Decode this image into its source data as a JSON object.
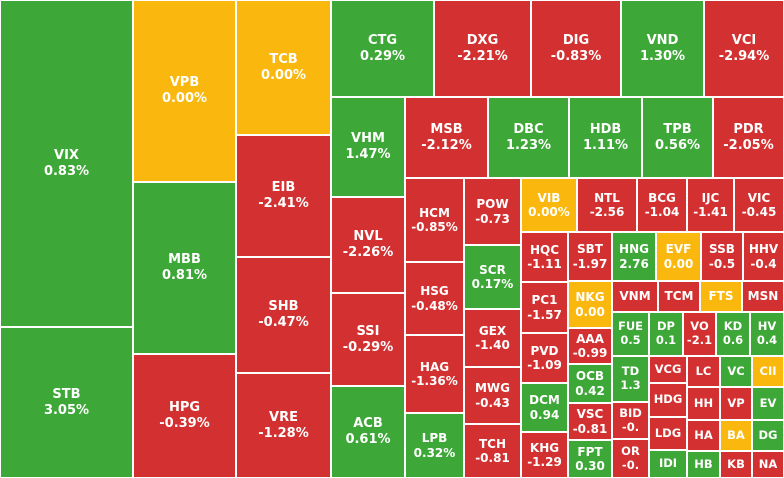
{
  "colors": {
    "up": "#3da837",
    "down": "#d33131",
    "flat": "#fab80e"
  },
  "tiles": [
    {
      "symbol": "VIX",
      "change": "0.83%",
      "state": "up"
    },
    {
      "symbol": "STB",
      "change": "3.05%",
      "state": "up"
    },
    {
      "symbol": "VPB",
      "change": "0.00%",
      "state": "flat"
    },
    {
      "symbol": "MBB",
      "change": "0.81%",
      "state": "up"
    },
    {
      "symbol": "HPG",
      "change": "-0.39%",
      "state": "down"
    },
    {
      "symbol": "TCB",
      "change": "0.00%",
      "state": "flat"
    },
    {
      "symbol": "EIB",
      "change": "-2.41%",
      "state": "down"
    },
    {
      "symbol": "SHB",
      "change": "-0.47%",
      "state": "down"
    },
    {
      "symbol": "VRE",
      "change": "-1.28%",
      "state": "down"
    },
    {
      "symbol": "CTG",
      "change": "0.29%",
      "state": "up"
    },
    {
      "symbol": "VHM",
      "change": "1.47%",
      "state": "up"
    },
    {
      "symbol": "NVL",
      "change": "-2.26%",
      "state": "down"
    },
    {
      "symbol": "SSI",
      "change": "-0.29%",
      "state": "down"
    },
    {
      "symbol": "ACB",
      "change": "0.61%",
      "state": "up"
    },
    {
      "symbol": "DXG",
      "change": "-2.21%",
      "state": "down"
    },
    {
      "symbol": "DIG",
      "change": "-0.83%",
      "state": "down"
    },
    {
      "symbol": "VND",
      "change": "1.30%",
      "state": "up"
    },
    {
      "symbol": "VCI",
      "change": "-2.94%",
      "state": "down"
    },
    {
      "symbol": "MSB",
      "change": "-2.12%",
      "state": "down"
    },
    {
      "symbol": "DBC",
      "change": "1.23%",
      "state": "up"
    },
    {
      "symbol": "HDB",
      "change": "1.11%",
      "state": "up"
    },
    {
      "symbol": "TPB",
      "change": "0.56%",
      "state": "up"
    },
    {
      "symbol": "PDR",
      "change": "-2.05%",
      "state": "down"
    },
    {
      "symbol": "HCM",
      "change": "-0.85%",
      "state": "down"
    },
    {
      "symbol": "HSG",
      "change": "-0.48%",
      "state": "down"
    },
    {
      "symbol": "HAG",
      "change": "-1.36%",
      "state": "down"
    },
    {
      "symbol": "LPB",
      "change": "0.32%",
      "state": "up"
    },
    {
      "symbol": "POW",
      "change": "-0.73",
      "state": "down"
    },
    {
      "symbol": "SCR",
      "change": "0.17%",
      "state": "up"
    },
    {
      "symbol": "GEX",
      "change": "-1.40",
      "state": "down"
    },
    {
      "symbol": "MWG",
      "change": "-0.43",
      "state": "down"
    },
    {
      "symbol": "TCH",
      "change": "-0.81",
      "state": "down"
    },
    {
      "symbol": "VIB",
      "change": "0.00%",
      "state": "flat"
    },
    {
      "symbol": "NTL",
      "change": "-2.56",
      "state": "down"
    },
    {
      "symbol": "BCG",
      "change": "-1.04",
      "state": "down"
    },
    {
      "symbol": "IJC",
      "change": "-1.41",
      "state": "down"
    },
    {
      "symbol": "VIC",
      "change": "-0.45",
      "state": "down"
    },
    {
      "symbol": "HQC",
      "change": "-1.11",
      "state": "down"
    },
    {
      "symbol": "PC1",
      "change": "-1.57",
      "state": "down"
    },
    {
      "symbol": "PVD",
      "change": "-1.09",
      "state": "down"
    },
    {
      "symbol": "DCM",
      "change": "0.94",
      "state": "up"
    },
    {
      "symbol": "KHG",
      "change": "-1.29",
      "state": "down"
    },
    {
      "symbol": "SBT",
      "change": "-1.97",
      "state": "down"
    },
    {
      "symbol": "HNG",
      "change": "2.76",
      "state": "up"
    },
    {
      "symbol": "EVF",
      "change": "0.00",
      "state": "flat"
    },
    {
      "symbol": "SSB",
      "change": "-0.5",
      "state": "down"
    },
    {
      "symbol": "HHV",
      "change": "-0.4",
      "state": "down"
    },
    {
      "symbol": "NKG",
      "change": "0.00",
      "state": "flat"
    },
    {
      "symbol": "VNM",
      "change": "",
      "state": "down"
    },
    {
      "symbol": "TCM",
      "change": "",
      "state": "down"
    },
    {
      "symbol": "FTS",
      "change": "",
      "state": "flat"
    },
    {
      "symbol": "MSN",
      "change": "",
      "state": "down"
    },
    {
      "symbol": "AAA",
      "change": "-0.99",
      "state": "down"
    },
    {
      "symbol": "OCB",
      "change": "0.42",
      "state": "up"
    },
    {
      "symbol": "VSC",
      "change": "-0.81",
      "state": "down"
    },
    {
      "symbol": "FPT",
      "change": "0.30",
      "state": "up"
    },
    {
      "symbol": "FUE",
      "change": "0.5",
      "state": "up"
    },
    {
      "symbol": "DP",
      "change": "0.1",
      "state": "up"
    },
    {
      "symbol": "VO",
      "change": "-2.1",
      "state": "down"
    },
    {
      "symbol": "KD",
      "change": "0.6",
      "state": "up"
    },
    {
      "symbol": "HV",
      "change": "0.4",
      "state": "up"
    },
    {
      "symbol": "TD",
      "change": "1.3",
      "state": "up"
    },
    {
      "symbol": "BID",
      "change": "-0.",
      "state": "down"
    },
    {
      "symbol": "OR",
      "change": "-0.",
      "state": "down"
    },
    {
      "symbol": "VCG",
      "change": "",
      "state": "down"
    },
    {
      "symbol": "HDG",
      "change": "",
      "state": "down"
    },
    {
      "symbol": "LDG",
      "change": "",
      "state": "down"
    },
    {
      "symbol": "IDI",
      "change": "",
      "state": "up"
    },
    {
      "symbol": "LC",
      "change": "",
      "state": "down"
    },
    {
      "symbol": "VC",
      "change": "",
      "state": "up"
    },
    {
      "symbol": "CII",
      "change": "",
      "state": "flat"
    },
    {
      "symbol": "HH",
      "change": "",
      "state": "down"
    },
    {
      "symbol": "VP",
      "change": "",
      "state": "down"
    },
    {
      "symbol": "EV",
      "change": "",
      "state": "up"
    },
    {
      "symbol": "HA",
      "change": "",
      "state": "down"
    },
    {
      "symbol": "BA",
      "change": "",
      "state": "flat"
    },
    {
      "symbol": "DG",
      "change": "",
      "state": "up"
    },
    {
      "symbol": "HB",
      "change": "",
      "state": "up"
    },
    {
      "symbol": "KB",
      "change": "",
      "state": "down"
    },
    {
      "symbol": "NA",
      "change": "",
      "state": "down"
    }
  ]
}
